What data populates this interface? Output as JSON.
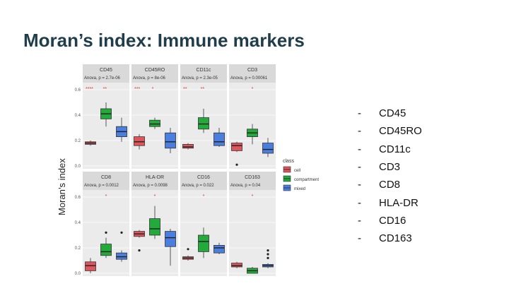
{
  "title": "Moran’s index: Immune markers",
  "ylabel": "Moran’s index",
  "markers": [
    "CD45",
    "CD45RO",
    "CD11c",
    "CD3",
    "CD8",
    "HLA-DR",
    "CD16",
    "CD163"
  ],
  "bullet": "-",
  "colors": {
    "cell": "#e0555b",
    "compartment": "#22ab3a",
    "mixed": "#4a7fe0",
    "panel_bg": "#ebebeb",
    "strip_bg": "#d9d9d9",
    "star": "#e8312f",
    "title": "#1f3d4a"
  },
  "chart_data": {
    "type": "box",
    "ylim": [
      0,
      0.6
    ],
    "yticks": [
      "0.0",
      "0.2",
      "0.4",
      "0.6"
    ],
    "yticks_values": [
      0,
      0.2,
      0.4,
      0.6
    ],
    "legend": {
      "title": "class",
      "entries": [
        "cell",
        "compartment",
        "mixed"
      ],
      "position": "right"
    },
    "facets": [
      {
        "name": "CD45",
        "subtitle": "Anova, p = 2.7e-06",
        "stars": [
          "****",
          "**"
        ],
        "boxes": [
          {
            "group": "cell",
            "q1": 0.17,
            "median": 0.18,
            "q3": 0.19,
            "low": 0.16,
            "high": 0.2,
            "outliers": []
          },
          {
            "group": "compartment",
            "q1": 0.37,
            "median": 0.41,
            "q3": 0.45,
            "low": 0.31,
            "high": 0.5,
            "outliers": []
          },
          {
            "group": "mixed",
            "q1": 0.23,
            "median": 0.27,
            "q3": 0.31,
            "low": 0.19,
            "high": 0.38,
            "outliers": []
          }
        ]
      },
      {
        "name": "CD45RO",
        "subtitle": "Anova, p = 8e-06",
        "stars": [
          "***",
          "*"
        ],
        "boxes": [
          {
            "group": "cell",
            "q1": 0.16,
            "median": 0.19,
            "q3": 0.23,
            "low": 0.13,
            "high": 0.25,
            "outliers": []
          },
          {
            "group": "compartment",
            "q1": 0.31,
            "median": 0.33,
            "q3": 0.36,
            "low": 0.29,
            "high": 0.38,
            "outliers": []
          },
          {
            "group": "mixed",
            "q1": 0.14,
            "median": 0.19,
            "q3": 0.26,
            "low": 0.1,
            "high": 0.3,
            "outliers": []
          }
        ]
      },
      {
        "name": "CD11c",
        "subtitle": "Anova, p = 2.3e-05",
        "stars": [
          "**",
          "**"
        ],
        "boxes": [
          {
            "group": "cell",
            "q1": 0.14,
            "median": 0.15,
            "q3": 0.17,
            "low": 0.13,
            "high": 0.18,
            "outliers": []
          },
          {
            "group": "compartment",
            "q1": 0.29,
            "median": 0.33,
            "q3": 0.38,
            "low": 0.26,
            "high": 0.45,
            "outliers": []
          },
          {
            "group": "mixed",
            "q1": 0.16,
            "median": 0.19,
            "q3": 0.26,
            "low": 0.15,
            "high": 0.3,
            "outliers": []
          }
        ]
      },
      {
        "name": "CD3",
        "subtitle": "Anova, p = 0.00061",
        "stars": [
          "*"
        ],
        "boxes": [
          {
            "group": "cell",
            "q1": 0.12,
            "median": 0.16,
            "q3": 0.18,
            "low": 0.11,
            "high": 0.19,
            "outliers": [
              0.01
            ]
          },
          {
            "group": "compartment",
            "q1": 0.23,
            "median": 0.26,
            "q3": 0.29,
            "low": 0.17,
            "high": 0.33,
            "outliers": []
          },
          {
            "group": "mixed",
            "q1": 0.1,
            "median": 0.13,
            "q3": 0.18,
            "low": 0.07,
            "high": 0.22,
            "outliers": []
          }
        ]
      },
      {
        "name": "CD8",
        "subtitle": "Anova, p = 0.0012",
        "stars": [
          "*"
        ],
        "boxes": [
          {
            "group": "cell",
            "q1": 0.02,
            "median": 0.06,
            "q3": 0.09,
            "low": 0.0,
            "high": 0.12,
            "outliers": []
          },
          {
            "group": "compartment",
            "q1": 0.14,
            "median": 0.17,
            "q3": 0.23,
            "low": 0.12,
            "high": 0.28,
            "outliers": [
              0.32
            ]
          },
          {
            "group": "mixed",
            "q1": 0.11,
            "median": 0.13,
            "q3": 0.16,
            "low": 0.09,
            "high": 0.18,
            "outliers": [
              0.32
            ]
          }
        ]
      },
      {
        "name": "HLA-DR",
        "subtitle": "Anova, p = 0.0098",
        "stars": [
          "*"
        ],
        "boxes": [
          {
            "group": "cell",
            "q1": 0.29,
            "median": 0.31,
            "q3": 0.33,
            "low": 0.28,
            "high": 0.34,
            "outliers": [
              0.18
            ]
          },
          {
            "group": "compartment",
            "q1": 0.3,
            "median": 0.35,
            "q3": 0.43,
            "low": 0.27,
            "high": 0.53,
            "outliers": []
          },
          {
            "group": "mixed",
            "q1": 0.21,
            "median": 0.28,
            "q3": 0.33,
            "low": 0.06,
            "high": 0.35,
            "outliers": []
          }
        ]
      },
      {
        "name": "CD16",
        "subtitle": "Anova, p = 0.022",
        "stars": [
          "*"
        ],
        "boxes": [
          {
            "group": "cell",
            "q1": 0.11,
            "median": 0.12,
            "q3": 0.13,
            "low": 0.1,
            "high": 0.14,
            "outliers": [
              0.19
            ]
          },
          {
            "group": "compartment",
            "q1": 0.17,
            "median": 0.25,
            "q3": 0.3,
            "low": 0.12,
            "high": 0.36,
            "outliers": []
          },
          {
            "group": "mixed",
            "q1": 0.16,
            "median": 0.2,
            "q3": 0.22,
            "low": 0.15,
            "high": 0.24,
            "outliers": []
          }
        ]
      },
      {
        "name": "CD163",
        "subtitle": "Anova, p = 0.04",
        "stars": [
          "*"
        ],
        "boxes": [
          {
            "group": "cell",
            "q1": 0.05,
            "median": 0.06,
            "q3": 0.08,
            "low": 0.04,
            "high": 0.09,
            "outliers": []
          },
          {
            "group": "compartment",
            "q1": 0.0,
            "median": 0.02,
            "q3": 0.04,
            "low": 0.0,
            "high": 0.05,
            "outliers": []
          },
          {
            "group": "mixed",
            "q1": 0.05,
            "median": 0.06,
            "q3": 0.07,
            "low": 0.04,
            "high": 0.08,
            "outliers": [
              0.12,
              0.15,
              0.18
            ]
          }
        ]
      }
    ]
  }
}
